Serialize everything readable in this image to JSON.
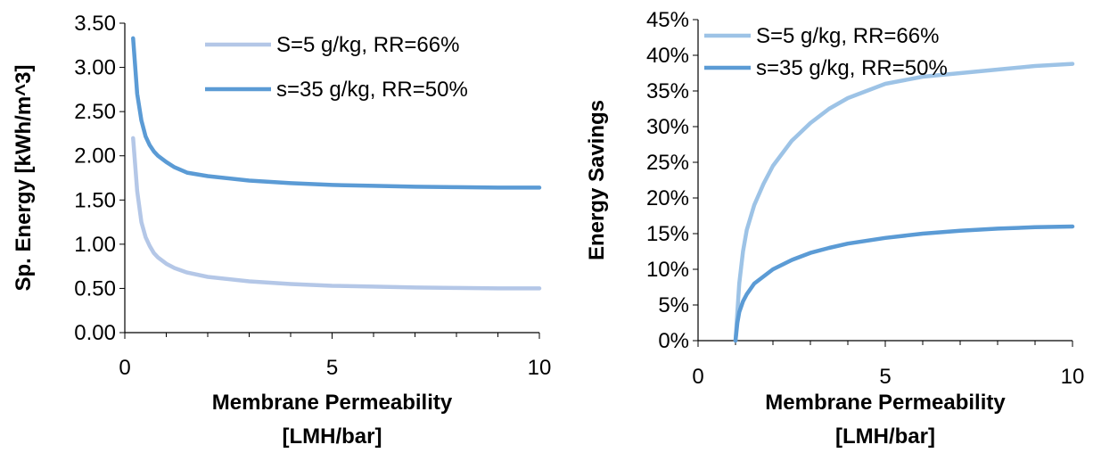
{
  "chart_data": [
    {
      "type": "line",
      "title": "",
      "ylabel": "Sp. Energy [kWh/m^3]",
      "xlabel_lines": [
        "Membrane Permeability",
        "[LMH/bar]"
      ],
      "xlim": [
        0,
        10
      ],
      "ylim": [
        0,
        3.5
      ],
      "xticks": [
        "0",
        "5",
        "10"
      ],
      "yticks": [
        "0.00",
        "0.50",
        "1.00",
        "1.50",
        "2.00",
        "2.50",
        "3.00",
        "3.50"
      ],
      "legend_position": "top-right",
      "series": [
        {
          "name": "S=5 g/kg, RR=66%",
          "color": "#b4c7e7",
          "x": [
            0.2,
            0.3,
            0.4,
            0.5,
            0.6,
            0.7,
            0.8,
            1.0,
            1.2,
            1.5,
            2.0,
            3.0,
            4.0,
            5.0,
            6.0,
            7.0,
            8.0,
            9.0,
            10.0
          ],
          "y": [
            2.2,
            1.6,
            1.25,
            1.08,
            0.98,
            0.9,
            0.85,
            0.78,
            0.73,
            0.68,
            0.63,
            0.58,
            0.55,
            0.53,
            0.52,
            0.51,
            0.505,
            0.5,
            0.5
          ]
        },
        {
          "name": "s=35 g/kg, RR=50%",
          "color": "#5b9bd5",
          "x": [
            0.2,
            0.3,
            0.4,
            0.5,
            0.6,
            0.7,
            0.8,
            1.0,
            1.2,
            1.5,
            2.0,
            3.0,
            4.0,
            5.0,
            6.0,
            7.0,
            8.0,
            9.0,
            10.0
          ],
          "y": [
            3.33,
            2.7,
            2.4,
            2.22,
            2.12,
            2.05,
            2.0,
            1.93,
            1.87,
            1.81,
            1.77,
            1.72,
            1.69,
            1.67,
            1.66,
            1.65,
            1.645,
            1.64,
            1.64
          ]
        }
      ]
    },
    {
      "type": "line",
      "title": "",
      "ylabel": "Energy Savings",
      "xlabel_lines": [
        "Membrane Permeability",
        "[LMH/bar]"
      ],
      "xlim": [
        0,
        10
      ],
      "ylim": [
        0,
        45
      ],
      "xticks": [
        "0",
        "5",
        "10"
      ],
      "yticks": [
        "0%",
        "5%",
        "10%",
        "15%",
        "20%",
        "25%",
        "30%",
        "35%",
        "40%",
        "45%"
      ],
      "legend_position": "top-left",
      "series": [
        {
          "name": "S=5 g/kg, RR=66%",
          "color": "#9dc3e6",
          "x": [
            1.0,
            1.05,
            1.1,
            1.2,
            1.3,
            1.5,
            1.75,
            2.0,
            2.5,
            3.0,
            3.5,
            4.0,
            5.0,
            6.0,
            7.0,
            8.0,
            9.0,
            10.0
          ],
          "y": [
            0,
            4,
            8,
            12.5,
            15.5,
            19,
            22,
            24.5,
            28,
            30.5,
            32.5,
            34,
            36,
            37,
            37.5,
            38,
            38.5,
            38.8
          ]
        },
        {
          "name": "s=35 g/kg, RR=50%",
          "color": "#5b9bd5",
          "x": [
            1.0,
            1.05,
            1.1,
            1.2,
            1.3,
            1.5,
            1.75,
            2.0,
            2.5,
            3.0,
            3.5,
            4.0,
            5.0,
            6.0,
            7.0,
            8.0,
            9.0,
            10.0
          ],
          "y": [
            0,
            2.5,
            4,
            5.5,
            6.5,
            8,
            9,
            10,
            11.3,
            12.3,
            13,
            13.6,
            14.4,
            15,
            15.4,
            15.7,
            15.9,
            16
          ]
        }
      ]
    }
  ]
}
